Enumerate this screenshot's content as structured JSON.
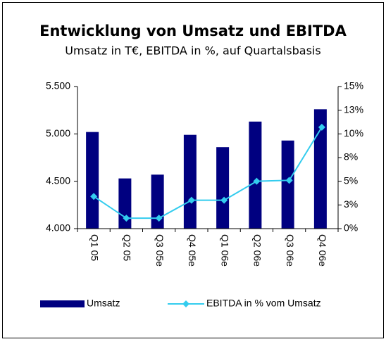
{
  "chart_data": {
    "type": "combo",
    "title": "Entwicklung von Umsatz und EBITDA",
    "subtitle": "Umsatz in T€, EBITDA in %, auf Quartalsbasis",
    "categories": [
      "Q1 05",
      "Q2 05",
      "Q3 05e",
      "Q4 05e",
      "Q1 06e",
      "Q2 06e",
      "Q3 06e",
      "Q4 06e"
    ],
    "series": [
      {
        "name": "Umsatz",
        "type": "bar",
        "color": "#000080",
        "values": [
          5020,
          4530,
          4570,
          4990,
          4860,
          5130,
          4930,
          5260
        ]
      },
      {
        "name": "EBITDA in % vom Umsatz",
        "type": "line",
        "axis": "y2",
        "color": "#33ccee",
        "values": [
          3.4,
          1.1,
          1.1,
          3.0,
          3.0,
          5.0,
          5.1,
          10.7
        ]
      }
    ],
    "ylim": [
      4000,
      5500
    ],
    "yticks": [
      {
        "value": 4000,
        "label": "4.000"
      },
      {
        "value": 4500,
        "label": "4.500"
      },
      {
        "value": 5000,
        "label": "5.000"
      },
      {
        "value": 5500,
        "label": "5.500"
      }
    ],
    "y2lim": [
      0,
      15
    ],
    "y2ticks": [
      {
        "value": 0,
        "label": "0%"
      },
      {
        "value": 2.5,
        "label": "3%"
      },
      {
        "value": 5,
        "label": "5%"
      },
      {
        "value": 7.5,
        "label": "8%"
      },
      {
        "value": 10,
        "label": "10%"
      },
      {
        "value": 12.5,
        "label": "13%"
      },
      {
        "value": 15,
        "label": "15%"
      }
    ],
    "grid": false,
    "legend": "bottom"
  }
}
